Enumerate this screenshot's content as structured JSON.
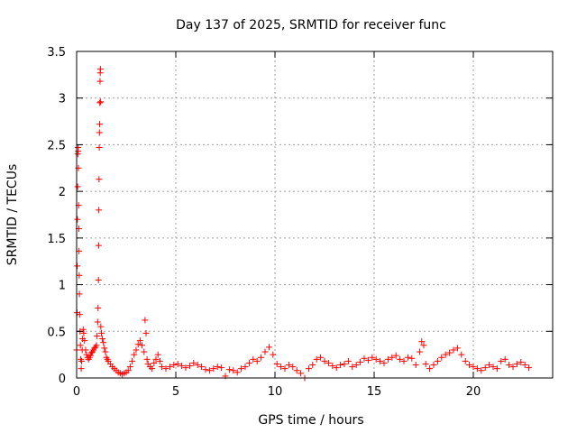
{
  "chart_data": {
    "type": "scatter",
    "title": "Day 137 of 2025, SRMTID for receiver func",
    "xlabel": "GPS time / hours",
    "ylabel": "SRMTID / TECUs",
    "xlim": [
      0,
      24
    ],
    "ylim": [
      0,
      3.5
    ],
    "x_ticks": [
      0,
      5,
      10,
      15,
      20
    ],
    "y_ticks": [
      0,
      0.5,
      1,
      1.5,
      2,
      2.5,
      3,
      3.5
    ],
    "x_tick_labels": [
      "0",
      "5",
      "10",
      "15",
      "20"
    ],
    "y_tick_labels": [
      "0",
      "0.5",
      "1",
      "1.5",
      "2",
      "2.5",
      "3",
      "3.5"
    ],
    "grid": true,
    "marker": "+",
    "color": "#ff0000",
    "series": [
      {
        "name": "SRMTID",
        "points": [
          [
            0.0,
            0.3
          ],
          [
            0.02,
            0.7
          ],
          [
            0.03,
            1.2
          ],
          [
            0.04,
            1.7
          ],
          [
            0.05,
            2.05
          ],
          [
            0.06,
            2.4
          ],
          [
            0.07,
            2.47
          ],
          [
            0.08,
            2.43
          ],
          [
            0.09,
            2.25
          ],
          [
            0.1,
            1.85
          ],
          [
            0.11,
            1.6
          ],
          [
            0.12,
            1.36
          ],
          [
            0.13,
            1.1
          ],
          [
            0.14,
            0.9
          ],
          [
            0.15,
            0.68
          ],
          [
            0.17,
            0.5
          ],
          [
            0.19,
            0.35
          ],
          [
            0.21,
            0.2
          ],
          [
            0.23,
            0.1
          ],
          [
            0.25,
            0.18
          ],
          [
            0.28,
            0.3
          ],
          [
            0.3,
            0.42
          ],
          [
            0.33,
            0.52
          ],
          [
            0.36,
            0.48
          ],
          [
            0.4,
            0.4
          ],
          [
            0.45,
            0.3
          ],
          [
            0.5,
            0.25
          ],
          [
            0.55,
            0.22
          ],
          [
            0.6,
            0.2
          ],
          [
            0.65,
            0.22
          ],
          [
            0.7,
            0.24
          ],
          [
            0.75,
            0.27
          ],
          [
            0.8,
            0.28
          ],
          [
            0.85,
            0.3
          ],
          [
            0.9,
            0.32
          ],
          [
            0.95,
            0.33
          ],
          [
            1.0,
            0.35
          ],
          [
            1.03,
            0.45
          ],
          [
            1.06,
            0.6
          ],
          [
            1.08,
            0.75
          ],
          [
            1.1,
            1.05
          ],
          [
            1.11,
            1.42
          ],
          [
            1.12,
            1.8
          ],
          [
            1.13,
            2.13
          ],
          [
            1.14,
            2.47
          ],
          [
            1.15,
            2.63
          ],
          [
            1.16,
            2.72
          ],
          [
            1.17,
            2.95
          ],
          [
            1.18,
            3.18
          ],
          [
            1.19,
            3.27
          ],
          [
            1.2,
            3.31
          ],
          [
            1.21,
            2.96
          ],
          [
            1.22,
            0.55
          ],
          [
            1.25,
            0.48
          ],
          [
            1.3,
            0.42
          ],
          [
            1.35,
            0.38
          ],
          [
            1.4,
            0.32
          ],
          [
            1.45,
            0.28
          ],
          [
            1.5,
            0.22
          ],
          [
            1.55,
            0.2
          ],
          [
            1.6,
            0.18
          ],
          [
            1.7,
            0.15
          ],
          [
            1.8,
            0.12
          ],
          [
            1.9,
            0.1
          ],
          [
            2.0,
            0.08
          ],
          [
            2.1,
            0.06
          ],
          [
            2.2,
            0.05
          ],
          [
            2.3,
            0.04
          ],
          [
            2.4,
            0.05
          ],
          [
            2.5,
            0.06
          ],
          [
            2.6,
            0.08
          ],
          [
            2.7,
            0.12
          ],
          [
            2.8,
            0.18
          ],
          [
            2.9,
            0.25
          ],
          [
            3.0,
            0.3
          ],
          [
            3.1,
            0.36
          ],
          [
            3.2,
            0.4
          ],
          [
            3.3,
            0.35
          ],
          [
            3.4,
            0.28
          ],
          [
            3.45,
            0.62
          ],
          [
            3.5,
            0.48
          ],
          [
            3.55,
            0.2
          ],
          [
            3.6,
            0.15
          ],
          [
            3.7,
            0.12
          ],
          [
            3.8,
            0.1
          ],
          [
            3.9,
            0.16
          ],
          [
            4.0,
            0.2
          ],
          [
            4.1,
            0.25
          ],
          [
            4.2,
            0.18
          ],
          [
            4.3,
            0.12
          ],
          [
            4.5,
            0.1
          ],
          [
            4.7,
            0.12
          ],
          [
            4.9,
            0.14
          ],
          [
            5.1,
            0.15
          ],
          [
            5.3,
            0.13
          ],
          [
            5.5,
            0.11
          ],
          [
            5.7,
            0.13
          ],
          [
            5.9,
            0.16
          ],
          [
            6.1,
            0.14
          ],
          [
            6.3,
            0.12
          ],
          [
            6.5,
            0.09
          ],
          [
            6.7,
            0.08
          ],
          [
            6.9,
            0.1
          ],
          [
            7.1,
            0.12
          ],
          [
            7.3,
            0.11
          ],
          [
            7.5,
            0.02
          ],
          [
            7.7,
            0.09
          ],
          [
            7.9,
            0.08
          ],
          [
            8.1,
            0.06
          ],
          [
            8.3,
            0.1
          ],
          [
            8.5,
            0.12
          ],
          [
            8.7,
            0.16
          ],
          [
            8.9,
            0.2
          ],
          [
            9.1,
            0.18
          ],
          [
            9.3,
            0.22
          ],
          [
            9.5,
            0.28
          ],
          [
            9.7,
            0.33
          ],
          [
            9.9,
            0.25
          ],
          [
            10.1,
            0.15
          ],
          [
            10.3,
            0.12
          ],
          [
            10.5,
            0.1
          ],
          [
            10.7,
            0.14
          ],
          [
            10.9,
            0.12
          ],
          [
            11.1,
            0.08
          ],
          [
            11.3,
            0.05
          ],
          [
            11.5,
            0.0
          ],
          [
            11.7,
            0.1
          ],
          [
            11.9,
            0.14
          ],
          [
            12.1,
            0.2
          ],
          [
            12.3,
            0.22
          ],
          [
            12.5,
            0.18
          ],
          [
            12.7,
            0.16
          ],
          [
            12.9,
            0.13
          ],
          [
            13.1,
            0.11
          ],
          [
            13.3,
            0.14
          ],
          [
            13.5,
            0.15
          ],
          [
            13.7,
            0.18
          ],
          [
            13.9,
            0.12
          ],
          [
            14.1,
            0.14
          ],
          [
            14.3,
            0.17
          ],
          [
            14.5,
            0.21
          ],
          [
            14.7,
            0.19
          ],
          [
            14.9,
            0.22
          ],
          [
            15.1,
            0.2
          ],
          [
            15.3,
            0.18
          ],
          [
            15.5,
            0.16
          ],
          [
            15.7,
            0.2
          ],
          [
            15.9,
            0.22
          ],
          [
            16.1,
            0.24
          ],
          [
            16.3,
            0.2
          ],
          [
            16.5,
            0.18
          ],
          [
            16.7,
            0.22
          ],
          [
            16.9,
            0.21
          ],
          [
            17.1,
            0.14
          ],
          [
            17.3,
            0.28
          ],
          [
            17.4,
            0.39
          ],
          [
            17.5,
            0.35
          ],
          [
            17.6,
            0.15
          ],
          [
            17.8,
            0.1
          ],
          [
            18.0,
            0.14
          ],
          [
            18.2,
            0.18
          ],
          [
            18.4,
            0.22
          ],
          [
            18.6,
            0.25
          ],
          [
            18.8,
            0.27
          ],
          [
            19.0,
            0.3
          ],
          [
            19.2,
            0.32
          ],
          [
            19.4,
            0.25
          ],
          [
            19.6,
            0.18
          ],
          [
            19.8,
            0.14
          ],
          [
            20.0,
            0.12
          ],
          [
            20.2,
            0.1
          ],
          [
            20.4,
            0.08
          ],
          [
            20.6,
            0.11
          ],
          [
            20.8,
            0.14
          ],
          [
            21.0,
            0.12
          ],
          [
            21.2,
            0.1
          ],
          [
            21.4,
            0.18
          ],
          [
            21.6,
            0.2
          ],
          [
            21.8,
            0.14
          ],
          [
            22.0,
            0.12
          ],
          [
            22.2,
            0.15
          ],
          [
            22.4,
            0.17
          ],
          [
            22.6,
            0.14
          ],
          [
            22.8,
            0.11
          ]
        ]
      }
    ]
  }
}
